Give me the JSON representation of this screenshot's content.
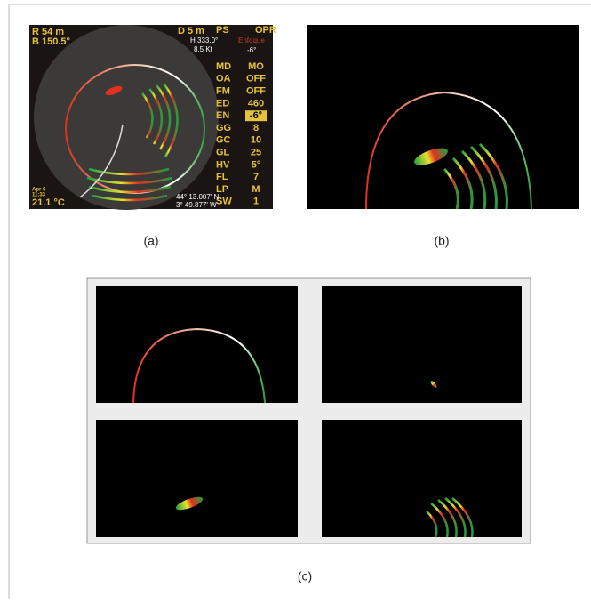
{
  "panel_a": {
    "range": "R 54 m",
    "bearing": "B 150.5°",
    "depth": "D 5 m",
    "heading": "H 333.0°",
    "speed": "8.5 Kt",
    "ps_label": "PS",
    "ps_value": "OPR",
    "focus_label": "Enfoque",
    "focus_value": "-6°",
    "menu": [
      [
        "MD",
        "MO"
      ],
      [
        "OA",
        "OFF"
      ],
      [
        "FM",
        "OFF"
      ],
      [
        "ED",
        "460"
      ],
      [
        "EN",
        "-6°"
      ],
      [
        "GG",
        "8"
      ],
      [
        "GC",
        "10"
      ],
      [
        "GL",
        "25"
      ],
      [
        "HV",
        "5°"
      ],
      [
        "FL",
        "7"
      ],
      [
        "LP",
        "M"
      ],
      [
        "SW",
        "1"
      ]
    ],
    "date": "Apr 6",
    "time": "11:33",
    "temperature": "21.1 °C",
    "latitude": "44° 13.007' N",
    "longitude": "3° 49.877' W"
  },
  "captions": [
    "(a)",
    "(b)",
    "(c)"
  ]
}
